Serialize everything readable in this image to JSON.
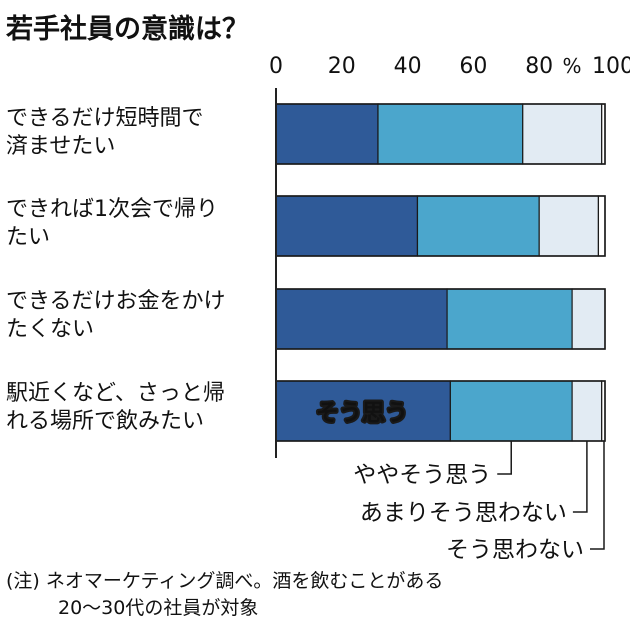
{
  "chart_data": {
    "type": "bar",
    "orientation": "horizontal",
    "stacked": true,
    "title": "若手社員の意識は？",
    "xlabel": "",
    "ylabel": "",
    "xlim": [
      0,
      100
    ],
    "x_ticks": [
      "0",
      "20",
      "40",
      "60",
      "80",
      "100"
    ],
    "unit": "%",
    "grid": false,
    "categories": [
      [
        "できるだけ短時間で",
        "済ませたい"
      ],
      [
        "できれば1次会で帰り",
        "たい"
      ],
      [
        "できるだけお金をかけ",
        "たくない"
      ],
      [
        "駅近くなど、さっと帰",
        "れる場所で飲みたい"
      ]
    ],
    "series": [
      {
        "name": "そう思う",
        "color": "#2f5a98",
        "values": [
          31,
          43,
          52,
          53
        ]
      },
      {
        "name": "ややそう思う",
        "color": "#4ba6cc",
        "values": [
          44,
          37,
          38,
          37
        ]
      },
      {
        "name": "あまりそう思わない",
        "color": "#e2ebf3",
        "values": [
          24,
          18,
          10,
          9
        ]
      },
      {
        "name": "そう思わない",
        "color": "#ffffff",
        "values": [
          1,
          2,
          0,
          1
        ]
      }
    ],
    "note": [
      "(注) ネオマーケティング調べ。酒を飲むことがある",
      "20～30代の社員が対象"
    ]
  }
}
